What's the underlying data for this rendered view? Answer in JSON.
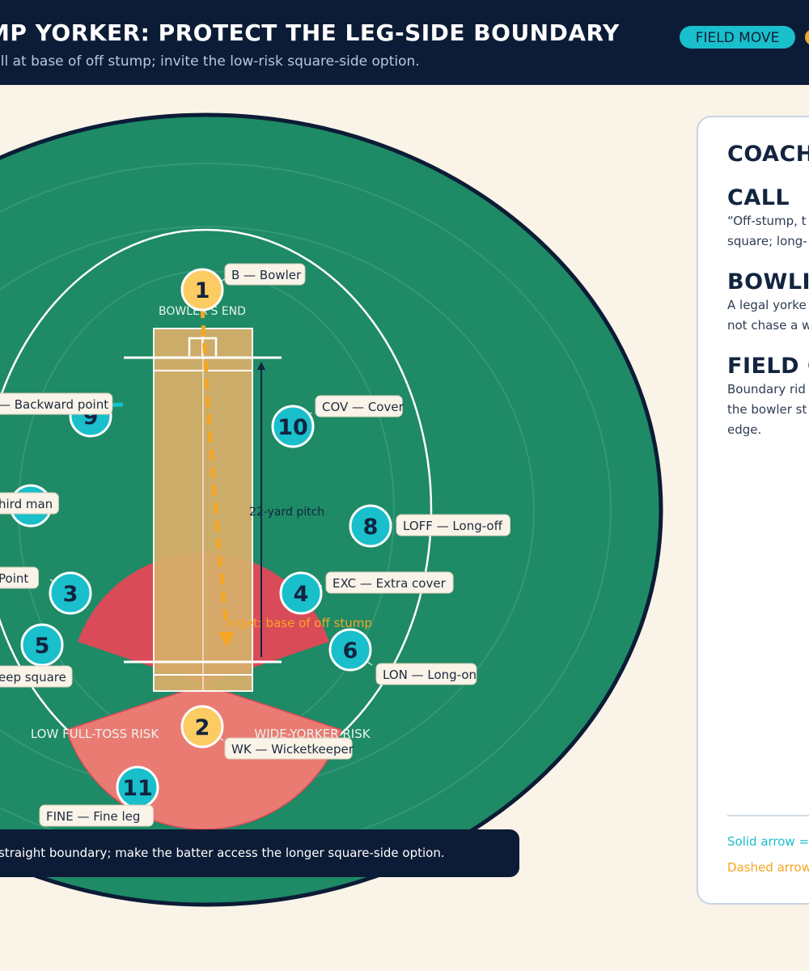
{
  "header": {
    "title": "MP YORKER: PROTECT THE LEG-SIDE BOUNDARY",
    "subtitle": "ull at base of off stump; invite the low-risk square-side option.",
    "badge": "FIELD MOVE"
  },
  "pitch": {
    "bowlers_end_label": "BOWLER'S END",
    "length_label": "22-yard pitch",
    "target_label": "arget: base of off stump"
  },
  "zones": {
    "low_full_toss": "LOW FULL-TOSS RISK",
    "wide_yorker": "WIDE-YORKER RISK"
  },
  "fielders": [
    {
      "number": "1",
      "label": "B — Bowler",
      "role": "bowler"
    },
    {
      "number": "2",
      "label": "WK — Wicketkeeper",
      "role": "keeper"
    },
    {
      "number": "3",
      "label": "Point",
      "role": "fielder"
    },
    {
      "number": "4",
      "label": "EXC — Extra cover",
      "role": "fielder"
    },
    {
      "number": "5",
      "label": "eep square",
      "role": "fielder"
    },
    {
      "number": "6",
      "label": "LON — Long-on",
      "role": "fielder"
    },
    {
      "number": "7",
      "label": "hird man",
      "role": "fielder"
    },
    {
      "number": "8",
      "label": "LOFF — Long-off",
      "role": "fielder"
    },
    {
      "number": "9",
      "label": "— Backward point",
      "role": "fielder"
    },
    {
      "number": "10",
      "label": "COV — Cover",
      "role": "fielder"
    },
    {
      "number": "11",
      "label": "FINE — Fine leg",
      "role": "fielder"
    }
  ],
  "panel": {
    "heading": "COACH",
    "sections": [
      {
        "title": "CALL",
        "lines": [
          "“Off-stump, t",
          "square; long-"
        ]
      },
      {
        "title": "BOWLI",
        "lines": [
          "A legal yorke",
          "not chase a w"
        ]
      },
      {
        "title": "FIELD C",
        "lines": [
          "Boundary rid",
          "the bowler st",
          "edge."
        ]
      }
    ],
    "legend_solid": "Solid arrow =",
    "legend_dashed": "Dashed arrow"
  },
  "footer": "e straight boundary; make the batter access the longer square-side option.",
  "colors": {
    "navy": "#0c1c36",
    "field_green": "#1e8a66",
    "pitch_tan": "#d6ae6a",
    "fielder_teal": "#19bfcb",
    "bowler_yellow": "#fccb61",
    "arrow_orange": "#f6a623",
    "zone_red": "#d94b58",
    "zone_pink": "#ea7b73"
  }
}
